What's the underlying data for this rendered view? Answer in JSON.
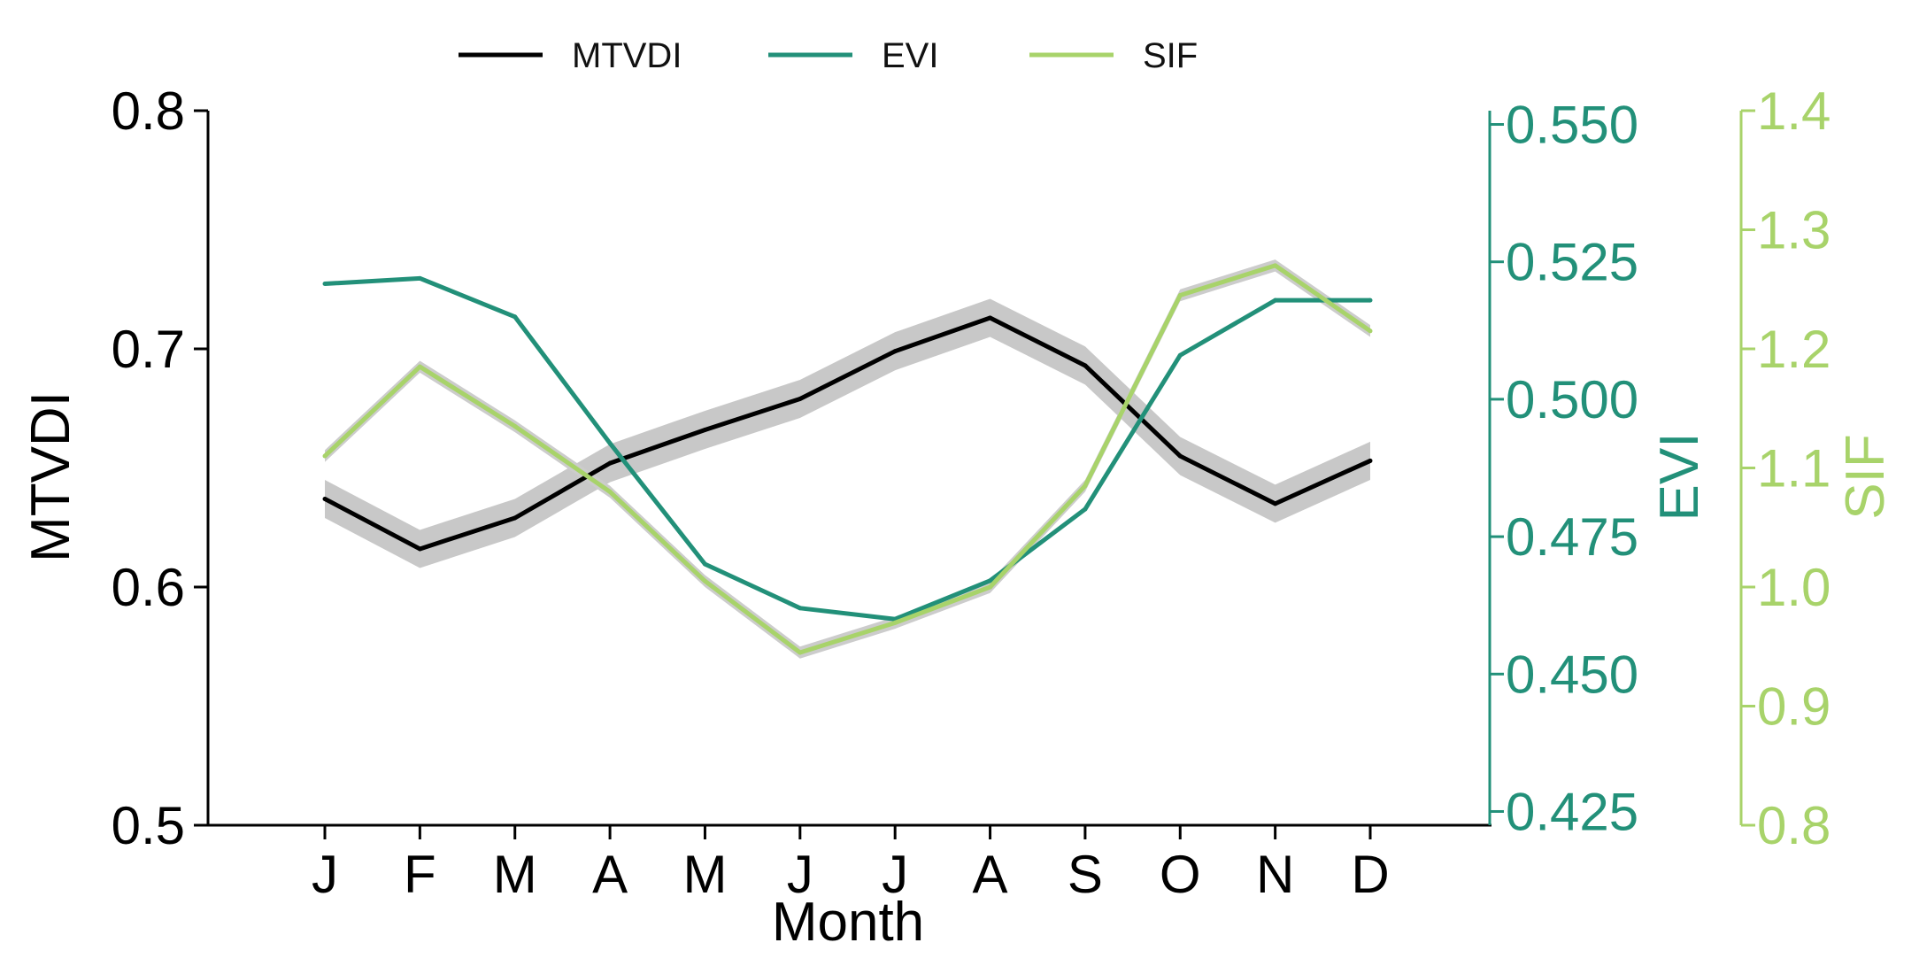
{
  "chart_data": {
    "type": "line",
    "categories": [
      "J",
      "F",
      "M",
      "A",
      "M",
      "J",
      "J",
      "A",
      "S",
      "O",
      "N",
      "D"
    ],
    "xlabel": "Month",
    "grid": false,
    "legend_position": "top-center",
    "series": [
      {
        "name": "MTVDI",
        "axis": "left",
        "color": "#000000",
        "band_color": "#c8c8c8",
        "values": [
          0.637,
          0.616,
          0.629,
          0.652,
          0.666,
          0.679,
          0.699,
          0.713,
          0.693,
          0.655,
          0.635,
          0.653
        ],
        "band_halfwidth": 0.008
      },
      {
        "name": "EVI",
        "axis": "right1",
        "color": "#229079",
        "values": [
          0.521,
          0.522,
          0.515,
          0.492,
          0.47,
          0.462,
          0.46,
          0.467,
          0.48,
          0.508,
          0.518,
          0.518
        ]
      },
      {
        "name": "SIF",
        "axis": "right2",
        "color": "#a8d36a",
        "band_color": "#cccccc",
        "values": [
          1.11,
          1.185,
          1.135,
          1.08,
          1.005,
          0.945,
          0.97,
          1.0,
          1.085,
          1.245,
          1.27,
          1.215
        ],
        "band_halfwidth": 0.005
      }
    ],
    "axes": {
      "left": {
        "label": "MTVDI",
        "ylim": [
          0.5,
          0.8
        ],
        "ticks": [
          "0.5",
          "0.6",
          "0.7",
          "0.8"
        ],
        "color": "#000000"
      },
      "right1": {
        "label": "EVI",
        "ylim": [
          0.4225,
          0.5525
        ],
        "ticks": [
          "0.425",
          "0.450",
          "0.475",
          "0.500",
          "0.525",
          "0.550"
        ],
        "color": "#229079"
      },
      "right2": {
        "label": "SIF",
        "ylim": [
          0.8,
          1.4
        ],
        "ticks": [
          "0.8",
          "0.9",
          "1.0",
          "1.1",
          "1.2",
          "1.3",
          "1.4"
        ],
        "color": "#a8d36a"
      }
    }
  }
}
